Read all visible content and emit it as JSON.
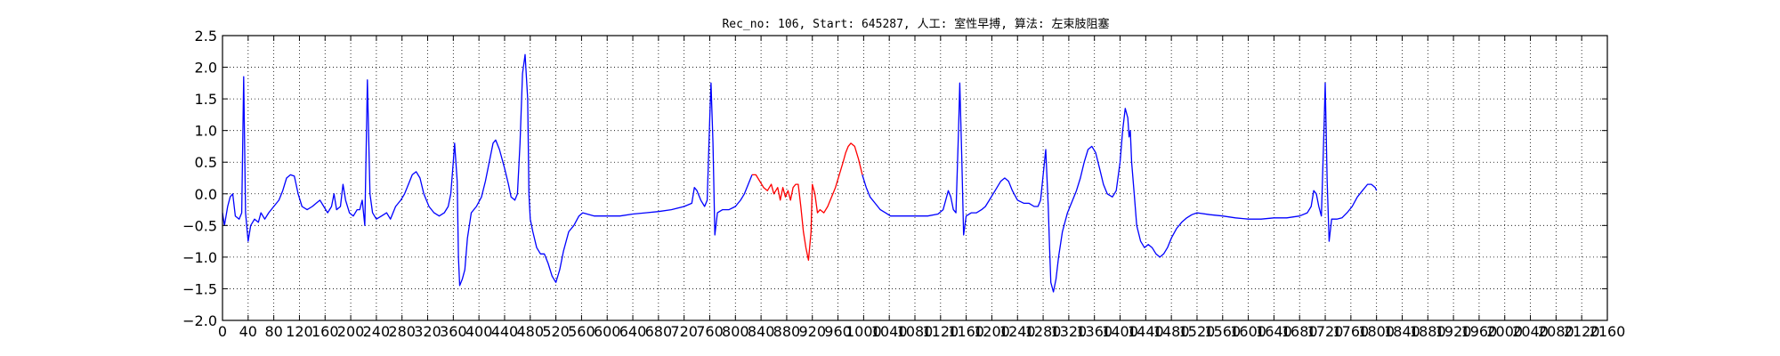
{
  "chart_data": {
    "type": "line",
    "title": "Rec_no: 106, Start: 645287, 人工: 室性早搏, 算法: 左束肢阻塞",
    "xlabel": "",
    "ylabel": "",
    "xlim": [
      0,
      2160
    ],
    "ylim": [
      -2.0,
      2.5
    ],
    "grid": true,
    "x_ticks": [
      0,
      40,
      80,
      120,
      160,
      200,
      240,
      280,
      320,
      360,
      400,
      440,
      480,
      520,
      560,
      600,
      640,
      680,
      720,
      760,
      800,
      840,
      880,
      920,
      960,
      1000,
      1040,
      1080,
      1120,
      1160,
      1200,
      1240,
      1280,
      1320,
      1360,
      1400,
      1440,
      1480,
      1520,
      1560,
      1600,
      1640,
      1680,
      1720,
      1760,
      1800,
      1840,
      1880,
      1920,
      1960,
      2000,
      2040,
      2080,
      2120,
      2160
    ],
    "x_tick_labels": [
      "0",
      "40",
      "80",
      "120",
      "160",
      "200",
      "240",
      "280",
      "320",
      "360",
      "400",
      "440",
      "480",
      "520",
      "560",
      "600",
      "640",
      "680",
      "720",
      "760",
      "800",
      "840",
      "880",
      "920",
      "960",
      "1000",
      "1040",
      "1080",
      "1120",
      "1160",
      "1200",
      "1240",
      "1280",
      "1320",
      "1360",
      "1400",
      "1440",
      "1480",
      "1520",
      "1560",
      "1600",
      "1640",
      "1680",
      "1720",
      "1760",
      "1800",
      "1840",
      "1880",
      "1920",
      "1960",
      "2000",
      "2040",
      "2080",
      "2120",
      "2160"
    ],
    "y_ticks": [
      -2.0,
      -1.5,
      -1.0,
      -0.5,
      0.0,
      0.5,
      1.0,
      1.5,
      2.0,
      2.5
    ],
    "y_tick_labels": [
      "−2.0",
      "−1.5",
      "−1.0",
      "−0.5",
      "0.0",
      "0.5",
      "1.0",
      "1.5",
      "2.0",
      "2.5"
    ],
    "series": [
      {
        "color": "#0000ff",
        "points": [
          [
            0,
            -0.3
          ],
          [
            3,
            -0.5
          ],
          [
            8,
            -0.2
          ],
          [
            12,
            -0.05
          ],
          [
            16,
            0.0
          ],
          [
            20,
            -0.35
          ],
          [
            26,
            -0.4
          ],
          [
            30,
            -0.3
          ],
          [
            33,
            1.85
          ],
          [
            36,
            -0.3
          ],
          [
            40,
            -0.75
          ],
          [
            44,
            -0.5
          ],
          [
            50,
            -0.4
          ],
          [
            56,
            -0.45
          ],
          [
            60,
            -0.3
          ],
          [
            66,
            -0.4
          ],
          [
            72,
            -0.3
          ],
          [
            80,
            -0.2
          ],
          [
            88,
            -0.1
          ],
          [
            94,
            0.05
          ],
          [
            100,
            0.25
          ],
          [
            106,
            0.3
          ],
          [
            112,
            0.28
          ],
          [
            118,
            0.0
          ],
          [
            124,
            -0.2
          ],
          [
            132,
            -0.25
          ],
          [
            140,
            -0.2
          ],
          [
            146,
            -0.15
          ],
          [
            152,
            -0.1
          ],
          [
            158,
            -0.2
          ],
          [
            164,
            -0.3
          ],
          [
            170,
            -0.2
          ],
          [
            174,
            0.0
          ],
          [
            178,
            -0.25
          ],
          [
            184,
            -0.2
          ],
          [
            188,
            0.15
          ],
          [
            192,
            -0.1
          ],
          [
            198,
            -0.3
          ],
          [
            204,
            -0.35
          ],
          [
            210,
            -0.25
          ],
          [
            214,
            -0.25
          ],
          [
            218,
            -0.1
          ],
          [
            222,
            -0.5
          ],
          [
            226,
            1.8
          ],
          [
            230,
            0.0
          ],
          [
            234,
            -0.3
          ],
          [
            240,
            -0.4
          ],
          [
            248,
            -0.35
          ],
          [
            256,
            -0.3
          ],
          [
            262,
            -0.4
          ],
          [
            270,
            -0.2
          ],
          [
            278,
            -0.1
          ],
          [
            284,
            0.0
          ],
          [
            290,
            0.15
          ],
          [
            296,
            0.3
          ],
          [
            302,
            0.35
          ],
          [
            308,
            0.25
          ],
          [
            314,
            0.0
          ],
          [
            322,
            -0.2
          ],
          [
            330,
            -0.3
          ],
          [
            338,
            -0.35
          ],
          [
            346,
            -0.3
          ],
          [
            352,
            -0.2
          ],
          [
            356,
            0.0
          ],
          [
            360,
            0.5
          ],
          [
            362,
            0.8
          ],
          [
            366,
            0.2
          ],
          [
            368,
            -1.0
          ],
          [
            370,
            -1.45
          ],
          [
            374,
            -1.35
          ],
          [
            378,
            -1.2
          ],
          [
            382,
            -0.7
          ],
          [
            388,
            -0.3
          ],
          [
            396,
            -0.2
          ],
          [
            404,
            -0.05
          ],
          [
            410,
            0.2
          ],
          [
            416,
            0.5
          ],
          [
            422,
            0.8
          ],
          [
            426,
            0.85
          ],
          [
            432,
            0.7
          ],
          [
            440,
            0.4
          ],
          [
            446,
            0.15
          ],
          [
            450,
            -0.05
          ],
          [
            456,
            -0.1
          ],
          [
            460,
            0.0
          ],
          [
            464,
            0.8
          ],
          [
            468,
            1.9
          ],
          [
            472,
            2.2
          ],
          [
            476,
            1.5
          ],
          [
            478,
            0.0
          ],
          [
            480,
            -0.4
          ],
          [
            484,
            -0.6
          ],
          [
            490,
            -0.85
          ],
          [
            496,
            -0.95
          ],
          [
            502,
            -0.95
          ],
          [
            508,
            -1.1
          ],
          [
            514,
            -1.3
          ],
          [
            520,
            -1.4
          ],
          [
            526,
            -1.2
          ],
          [
            532,
            -0.9
          ],
          [
            540,
            -0.6
          ],
          [
            548,
            -0.5
          ],
          [
            556,
            -0.35
          ],
          [
            562,
            -0.3
          ],
          [
            580,
            -0.35
          ],
          [
            600,
            -0.35
          ],
          [
            620,
            -0.35
          ],
          [
            640,
            -0.32
          ],
          [
            660,
            -0.3
          ],
          [
            680,
            -0.28
          ],
          [
            700,
            -0.25
          ],
          [
            720,
            -0.2
          ],
          [
            732,
            -0.15
          ],
          [
            736,
            0.1
          ],
          [
            740,
            0.05
          ],
          [
            746,
            -0.1
          ],
          [
            752,
            -0.2
          ],
          [
            756,
            -0.1
          ],
          [
            760,
            1.2
          ],
          [
            762,
            1.75
          ],
          [
            765,
            0.8
          ],
          [
            768,
            -0.65
          ],
          [
            772,
            -0.3
          ],
          [
            780,
            -0.25
          ],
          [
            790,
            -0.25
          ],
          [
            800,
            -0.2
          ],
          [
            808,
            -0.1
          ],
          [
            814,
            0.0
          ],
          [
            820,
            0.15
          ],
          [
            826,
            0.3
          ]
        ]
      },
      {
        "color": "#ff0000",
        "points": [
          [
            826,
            0.3
          ],
          [
            832,
            0.3
          ],
          [
            838,
            0.2
          ],
          [
            844,
            0.1
          ],
          [
            850,
            0.05
          ],
          [
            856,
            0.15
          ],
          [
            860,
            0.0
          ],
          [
            866,
            0.1
          ],
          [
            870,
            -0.1
          ],
          [
            874,
            0.1
          ],
          [
            878,
            -0.05
          ],
          [
            882,
            0.05
          ],
          [
            886,
            -0.1
          ],
          [
            890,
            0.1
          ],
          [
            894,
            0.15
          ],
          [
            898,
            0.15
          ],
          [
            902,
            -0.2
          ],
          [
            906,
            -0.6
          ],
          [
            910,
            -0.85
          ],
          [
            914,
            -1.05
          ],
          [
            918,
            -0.6
          ],
          [
            920,
            0.15
          ],
          [
            924,
            0.0
          ],
          [
            928,
            -0.3
          ],
          [
            932,
            -0.25
          ],
          [
            938,
            -0.3
          ],
          [
            944,
            -0.2
          ],
          [
            950,
            -0.05
          ],
          [
            956,
            0.1
          ],
          [
            962,
            0.3
          ],
          [
            968,
            0.5
          ],
          [
            972,
            0.65
          ],
          [
            976,
            0.75
          ],
          [
            980,
            0.8
          ],
          [
            986,
            0.75
          ],
          [
            992,
            0.55
          ],
          [
            998,
            0.3
          ]
        ]
      },
      {
        "color": "#0000ff",
        "points": [
          [
            998,
            0.3
          ],
          [
            1004,
            0.1
          ],
          [
            1010,
            -0.05
          ],
          [
            1018,
            -0.15
          ],
          [
            1026,
            -0.25
          ],
          [
            1034,
            -0.3
          ],
          [
            1042,
            -0.35
          ],
          [
            1060,
            -0.35
          ],
          [
            1080,
            -0.35
          ],
          [
            1100,
            -0.35
          ],
          [
            1116,
            -0.32
          ],
          [
            1124,
            -0.25
          ],
          [
            1128,
            -0.1
          ],
          [
            1132,
            0.05
          ],
          [
            1136,
            -0.05
          ],
          [
            1140,
            -0.25
          ],
          [
            1144,
            -0.3
          ],
          [
            1148,
            1.0
          ],
          [
            1150,
            1.75
          ],
          [
            1153,
            0.6
          ],
          [
            1156,
            -0.65
          ],
          [
            1160,
            -0.35
          ],
          [
            1168,
            -0.3
          ],
          [
            1176,
            -0.3
          ],
          [
            1184,
            -0.25
          ],
          [
            1190,
            -0.2
          ],
          [
            1196,
            -0.1
          ],
          [
            1202,
            0.0
          ],
          [
            1208,
            0.1
          ],
          [
            1214,
            0.2
          ],
          [
            1220,
            0.25
          ],
          [
            1226,
            0.2
          ],
          [
            1232,
            0.05
          ],
          [
            1240,
            -0.1
          ],
          [
            1250,
            -0.15
          ],
          [
            1258,
            -0.15
          ],
          [
            1266,
            -0.2
          ],
          [
            1272,
            -0.2
          ],
          [
            1276,
            -0.1
          ],
          [
            1280,
            0.3
          ],
          [
            1284,
            0.7
          ],
          [
            1288,
            -0.2
          ],
          [
            1290,
            -0.85
          ],
          [
            1292,
            -1.4
          ],
          [
            1296,
            -1.55
          ],
          [
            1300,
            -1.35
          ],
          [
            1304,
            -1.0
          ],
          [
            1310,
            -0.6
          ],
          [
            1318,
            -0.3
          ],
          [
            1326,
            -0.1
          ],
          [
            1332,
            0.05
          ],
          [
            1338,
            0.25
          ],
          [
            1344,
            0.5
          ],
          [
            1350,
            0.7
          ],
          [
            1356,
            0.75
          ],
          [
            1362,
            0.65
          ],
          [
            1368,
            0.4
          ],
          [
            1374,
            0.15
          ],
          [
            1380,
            0.0
          ],
          [
            1388,
            -0.05
          ],
          [
            1394,
            0.05
          ],
          [
            1400,
            0.5
          ],
          [
            1404,
            1.0
          ],
          [
            1408,
            1.35
          ],
          [
            1412,
            1.2
          ],
          [
            1414,
            0.9
          ],
          [
            1416,
            1.0
          ],
          [
            1418,
            0.5
          ],
          [
            1422,
            0.0
          ],
          [
            1426,
            -0.5
          ],
          [
            1432,
            -0.75
          ],
          [
            1438,
            -0.85
          ],
          [
            1444,
            -0.8
          ],
          [
            1450,
            -0.85
          ],
          [
            1456,
            -0.95
          ],
          [
            1462,
            -1.0
          ],
          [
            1468,
            -0.95
          ],
          [
            1474,
            -0.85
          ],
          [
            1480,
            -0.7
          ],
          [
            1488,
            -0.55
          ],
          [
            1496,
            -0.45
          ],
          [
            1504,
            -0.38
          ],
          [
            1512,
            -0.33
          ],
          [
            1520,
            -0.3
          ],
          [
            1540,
            -0.33
          ],
          [
            1560,
            -0.35
          ],
          [
            1580,
            -0.38
          ],
          [
            1600,
            -0.4
          ],
          [
            1620,
            -0.4
          ],
          [
            1640,
            -0.38
          ],
          [
            1660,
            -0.38
          ],
          [
            1680,
            -0.35
          ],
          [
            1692,
            -0.3
          ],
          [
            1698,
            -0.2
          ],
          [
            1702,
            0.05
          ],
          [
            1706,
            0.0
          ],
          [
            1710,
            -0.2
          ],
          [
            1714,
            -0.35
          ],
          [
            1718,
            1.0
          ],
          [
            1720,
            1.75
          ],
          [
            1723,
            0.2
          ],
          [
            1726,
            -0.75
          ],
          [
            1730,
            -0.4
          ],
          [
            1738,
            -0.4
          ],
          [
            1746,
            -0.38
          ],
          [
            1754,
            -0.3
          ],
          [
            1762,
            -0.2
          ],
          [
            1770,
            -0.05
          ],
          [
            1778,
            0.05
          ],
          [
            1786,
            0.15
          ],
          [
            1792,
            0.15
          ],
          [
            1798,
            0.1
          ],
          [
            1800,
            0.05
          ]
        ]
      }
    ]
  }
}
